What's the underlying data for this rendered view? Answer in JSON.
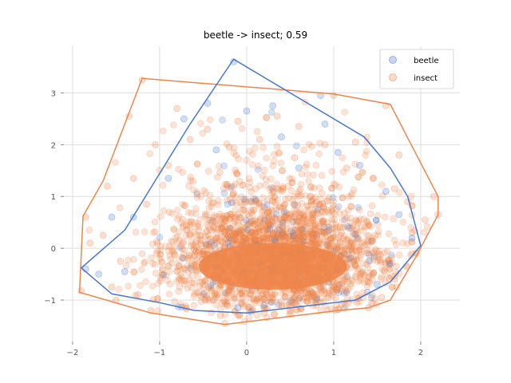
{
  "chart_data": {
    "type": "scatter",
    "title": "beetle -> insect; 0.59",
    "xlabel": "",
    "ylabel": "",
    "xlim": [
      -2.1,
      2.45
    ],
    "ylim": [
      -1.8,
      3.9
    ],
    "x_ticks": [
      -2,
      -1,
      0,
      1,
      2
    ],
    "x_tick_labels": [
      "−2",
      "−1",
      "0",
      "1",
      "2"
    ],
    "y_ticks": [
      -1,
      0,
      1,
      2,
      3
    ],
    "y_tick_labels": [
      "−1",
      "0",
      "1",
      "2",
      "3"
    ],
    "grid": true,
    "legend_position": "top-right",
    "series": [
      {
        "name": "beetle",
        "color": "#4878cf",
        "hull": [
          [
            -0.15,
            3.65
          ],
          [
            1.35,
            2.15
          ],
          [
            1.65,
            1.55
          ],
          [
            1.85,
            1.0
          ],
          [
            2.0,
            0.05
          ],
          [
            1.65,
            -0.65
          ],
          [
            1.25,
            -1.0
          ],
          [
            0.75,
            -1.1
          ],
          [
            0.0,
            -1.25
          ],
          [
            -0.6,
            -1.2
          ],
          [
            -1.0,
            -1.05
          ],
          [
            -1.55,
            -0.88
          ],
          [
            -1.9,
            -0.38
          ],
          [
            -1.4,
            0.35
          ],
          [
            -0.65,
            2.4
          ]
        ],
        "sample_points": [
          [
            -0.15,
            3.6
          ],
          [
            0.0,
            2.65
          ],
          [
            0.3,
            2.75
          ],
          [
            -0.45,
            2.8
          ],
          [
            -0.72,
            2.5
          ],
          [
            0.85,
            2.95
          ],
          [
            1.05,
            1.85
          ],
          [
            1.3,
            1.6
          ],
          [
            -1.3,
            0.6
          ],
          [
            -1.55,
            0.6
          ],
          [
            -1.85,
            -0.4
          ],
          [
            -1.7,
            -0.5
          ],
          [
            -1.4,
            -0.45
          ],
          [
            -0.1,
            -1.15
          ],
          [
            0.05,
            -1.22
          ],
          [
            0.6,
            1.55
          ],
          [
            1.75,
            0.65
          ],
          [
            1.9,
            0.2
          ],
          [
            -0.35,
            1.9
          ],
          [
            0.4,
            2.15
          ],
          [
            1.5,
            -0.7
          ],
          [
            -0.9,
            1.35
          ],
          [
            0.2,
            -1.1
          ],
          [
            0.9,
            2.4
          ],
          [
            1.6,
            1.1
          ]
        ]
      },
      {
        "name": "insect",
        "color": "#ee854a",
        "hull": [
          [
            -1.2,
            3.28
          ],
          [
            1.0,
            2.98
          ],
          [
            1.65,
            2.78
          ],
          [
            2.2,
            1.0
          ],
          [
            2.2,
            0.65
          ],
          [
            1.95,
            -0.15
          ],
          [
            1.65,
            -1.0
          ],
          [
            1.4,
            -1.15
          ],
          [
            1.05,
            -1.2
          ],
          [
            -0.25,
            -1.47
          ],
          [
            -1.1,
            -1.25
          ],
          [
            -1.92,
            -0.85
          ],
          [
            -1.88,
            0.62
          ],
          [
            -1.65,
            1.3
          ]
        ],
        "sample_points": [
          [
            -1.2,
            3.25
          ],
          [
            -1.35,
            2.55
          ],
          [
            -0.8,
            2.7
          ],
          [
            -0.1,
            2.45
          ],
          [
            0.35,
            2.55
          ],
          [
            0.6,
            2.35
          ],
          [
            1.0,
            2.95
          ],
          [
            1.6,
            2.75
          ],
          [
            1.25,
            2.05
          ],
          [
            1.75,
            1.8
          ],
          [
            2.15,
            1.0
          ],
          [
            2.2,
            0.65
          ],
          [
            1.95,
            -0.1
          ],
          [
            1.7,
            -0.6
          ],
          [
            1.55,
            -0.95
          ],
          [
            1.4,
            -1.15
          ],
          [
            1.05,
            -1.18
          ],
          [
            0.5,
            -1.2
          ],
          [
            -0.25,
            -1.45
          ],
          [
            -0.7,
            -1.15
          ],
          [
            -1.1,
            -1.2
          ],
          [
            -1.5,
            -1.0
          ],
          [
            -1.9,
            -0.82
          ],
          [
            -1.85,
            0.6
          ],
          [
            -1.6,
            1.2
          ],
          [
            -1.3,
            1.35
          ],
          [
            -1.65,
            0.25
          ],
          [
            -1.8,
            0.1
          ],
          [
            -1.45,
            -0.25
          ],
          [
            -1.15,
            0.85
          ],
          [
            -1.05,
            2.0
          ],
          [
            -0.65,
            2.1
          ],
          [
            -0.2,
            1.95
          ],
          [
            0.9,
            2.0
          ],
          [
            1.45,
            1.35
          ],
          [
            1.7,
            1.15
          ],
          [
            1.85,
            0.9
          ],
          [
            2.05,
            0.55
          ],
          [
            1.9,
            0.3
          ],
          [
            1.6,
            -0.3
          ],
          [
            -1.55,
            -0.75
          ],
          [
            -1.25,
            -0.9
          ],
          [
            -0.3,
            -1.3
          ],
          [
            0.2,
            -1.25
          ],
          [
            0.8,
            -1.1
          ],
          [
            -0.45,
            2.3
          ],
          [
            0.15,
            2.1
          ],
          [
            0.55,
            1.75
          ],
          [
            1.15,
            1.55
          ],
          [
            -0.9,
            1.6
          ]
        ]
      }
    ]
  }
}
